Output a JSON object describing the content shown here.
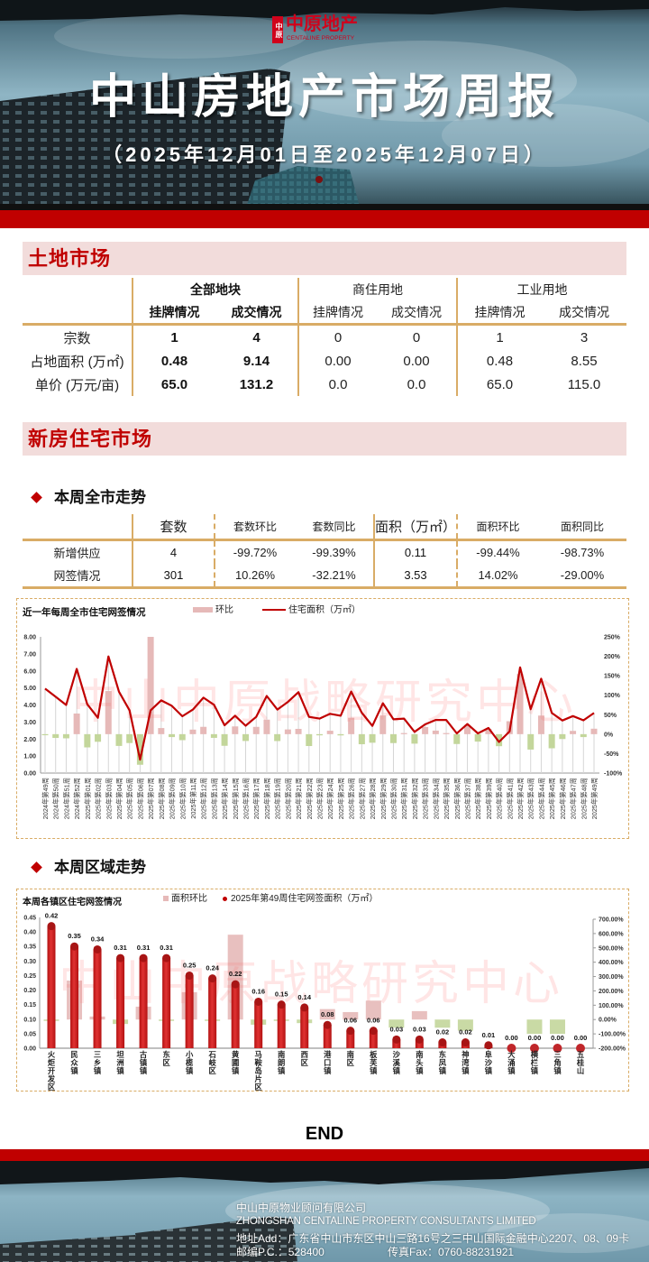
{
  "header": {
    "logo_mark": "中原",
    "logo_cn": "中原地产",
    "logo_en": "CENTALINE PROPERTY",
    "title": "中山房地产市场周报",
    "subtitle": "（2025年12月01日至2025年12月07日）"
  },
  "land": {
    "section_title": "土地市场",
    "groups": [
      "全部地块",
      "商住用地",
      "工业用地"
    ],
    "subheaders": [
      "挂牌情况",
      "成交情况",
      "挂牌情况",
      "成交情况",
      "挂牌情况",
      "成交情况"
    ],
    "rows": [
      {
        "label": "宗数",
        "values": [
          "1",
          "4",
          "0",
          "0",
          "1",
          "3"
        ]
      },
      {
        "label": "占地面积 (万㎡)",
        "values": [
          "0.48",
          "9.14",
          "0.00",
          "0.00",
          "0.48",
          "8.55"
        ]
      },
      {
        "label": "单价 (万元/亩)",
        "values": [
          "65.0",
          "131.2",
          "0.0",
          "0.0",
          "65.0",
          "115.0"
        ]
      }
    ]
  },
  "new_home": {
    "section_title": "新房住宅市场",
    "weekly": {
      "subtitle": "本周全市走势",
      "headers": [
        "套数",
        "套数环比",
        "套数同比",
        "面积（万㎡）",
        "面积环比",
        "面积同比"
      ],
      "rows": [
        {
          "label": "新增供应",
          "values": [
            "4",
            "-99.72%",
            "-99.39%",
            "0.11",
            "-99.44%",
            "-98.73%"
          ]
        },
        {
          "label": "网签情况",
          "values": [
            "301",
            "10.26%",
            "-32.21%",
            "3.53",
            "14.02%",
            "-29.00%"
          ]
        }
      ]
    },
    "regional": {
      "subtitle": "本周区域走势"
    }
  },
  "colors": {
    "brand_red": "#c00000",
    "section_bg": "#f2dcdb",
    "table_rule": "#d9ac66",
    "positive": "#ff2020",
    "negative": "#1fa34a",
    "bar_up": "#e6b9b8",
    "bar_down": "#c3d69b"
  },
  "chart_data": [
    {
      "type": "bar+line",
      "title": "近一年每周全市住宅网签情况",
      "legend": [
        "环比",
        "住宅面积（万㎡）"
      ],
      "legend_position": "top",
      "categories": [
        "2024年第49周",
        "2024年第50周",
        "2024年第51周",
        "2024年第52周",
        "2025年第01周",
        "2025年第02周",
        "2025年第03周",
        "2025年第04周",
        "2025年第05周",
        "2025年第06周",
        "2025年第07周",
        "2025年第08周",
        "2025年第09周",
        "2025年第10周",
        "2025年第11周",
        "2025年第12周",
        "2025年第13周",
        "2025年第14周",
        "2025年第15周",
        "2025年第16周",
        "2025年第17周",
        "2025年第18周",
        "2025年第19周",
        "2025年第20周",
        "2025年第21周",
        "2025年第22周",
        "2025年第23周",
        "2025年第24周",
        "2025年第25周",
        "2025年第26周",
        "2025年第27周",
        "2025年第28周",
        "2025年第29周",
        "2025年第30周",
        "2025年第31周",
        "2025年第32周",
        "2025年第33周",
        "2025年第34周",
        "2025年第35周",
        "2025年第36周",
        "2025年第37周",
        "2025年第38周",
        "2025年第39周",
        "2025年第40周",
        "2025年第41周",
        "2025年第42周",
        "2025年第43周",
        "2025年第44周",
        "2025年第45周",
        "2025年第46周",
        "2025年第47周",
        "2025年第48周",
        "2025年第49周"
      ],
      "series": [
        {
          "name": "住宅面积（万㎡）",
          "type": "line",
          "axis": "left",
          "values": [
            4.96,
            4.48,
            4.0,
            6.12,
            4.04,
            3.25,
            6.85,
            4.78,
            3.69,
            0.79,
            3.69,
            4.27,
            3.95,
            3.34,
            3.73,
            4.43,
            4.01,
            2.81,
            3.37,
            2.78,
            3.3,
            4.53,
            3.73,
            4.18,
            4.75,
            3.3,
            3.2,
            3.48,
            3.37,
            4.79,
            3.55,
            2.77,
            4.1,
            3.16,
            3.2,
            2.42,
            2.86,
            3.12,
            3.12,
            2.33,
            2.88,
            2.33,
            2.65,
            1.83,
            2.44,
            6.21,
            3.75,
            5.54,
            3.53,
            3.09,
            3.35,
            3.1,
            3.53
          ]
        },
        {
          "name": "环比",
          "type": "bar",
          "axis": "right",
          "unit": "%",
          "values": [
            -1.0,
            -9.7,
            -10.7,
            53.0,
            -34.0,
            -19.6,
            110.8,
            -30.2,
            -22.8,
            -78.6,
            367.1,
            15.7,
            -7.5,
            -15.4,
            11.7,
            18.8,
            -9.5,
            -29.9,
            19.9,
            -17.5,
            18.7,
            37.3,
            -17.7,
            12.1,
            13.6,
            -30.5,
            -3.0,
            8.8,
            -3.2,
            42.1,
            -25.9,
            -22.0,
            48.0,
            -22.9,
            1.3,
            -24.4,
            18.2,
            9.1,
            0.0,
            -25.3,
            23.6,
            -19.1,
            13.7,
            -30.9,
            33.3,
            154.5,
            -39.6,
            47.7,
            -36.3,
            -12.5,
            8.4,
            -7.5,
            14.02
          ]
        }
      ],
      "xlabel": "",
      "ylabel": "",
      "y_left": {
        "range": [
          0,
          8
        ],
        "ticks": [
          "0.00",
          "1.00",
          "2.00",
          "3.00",
          "4.00",
          "5.00",
          "6.00",
          "7.00",
          "8.00"
        ]
      },
      "y_right": {
        "range": [
          -100,
          250
        ],
        "ticks": [
          "-100%",
          "-50%",
          "0%",
          "50%",
          "100%",
          "150%",
          "200%",
          "250%"
        ]
      },
      "grid": false,
      "watermark": "中山中原战略研究中心"
    },
    {
      "type": "bar",
      "title": "本周各镇区住宅网签情况",
      "legend": [
        "面积环比",
        "2025年第49周住宅网签面积（万㎡）"
      ],
      "legend_position": "top",
      "categories": [
        "火炬开发区",
        "民众镇",
        "三乡镇",
        "坦洲镇",
        "古镇镇",
        "东区",
        "小榄镇",
        "石岐区",
        "黄圃镇",
        "马鞍岛片区",
        "南朗镇",
        "西区",
        "港口镇",
        "南区",
        "板芙镇",
        "沙溪镇",
        "南头镇",
        "东凤镇",
        "神湾镇",
        "阜沙镇",
        "大涌镇",
        "横栏镇",
        "三角镇",
        "五桂山"
      ],
      "series": [
        {
          "name": "2025年第49周住宅网签面积（万㎡）",
          "type": "bar",
          "axis": "left",
          "values": [
            0.42,
            0.35,
            0.34,
            0.31,
            0.31,
            0.31,
            0.25,
            0.24,
            0.22,
            0.16,
            0.15,
            0.14,
            0.08,
            0.06,
            0.06,
            0.03,
            0.03,
            0.02,
            0.02,
            0.01,
            0.0,
            0.0,
            0.0,
            0.0
          ]
        },
        {
          "name": "面积环比",
          "type": "bar",
          "axis": "right",
          "unit": "%",
          "values": [
            -2,
            272,
            21,
            -31,
            90,
            -2,
            191,
            -2,
            592,
            -36,
            -2,
            -25,
            73,
            52,
            132,
            -57,
            59,
            -57,
            -78,
            null,
            null,
            -100,
            -100,
            null
          ]
        }
      ],
      "xlabel": "",
      "ylabel": "",
      "y_left": {
        "range": [
          0,
          0.45
        ],
        "ticks": [
          "0.00",
          "0.05",
          "0.10",
          "0.15",
          "0.20",
          "0.25",
          "0.30",
          "0.35",
          "0.40",
          "0.45"
        ]
      },
      "y_right": {
        "range": [
          -200,
          700
        ],
        "ticks": [
          "-200.00%",
          "-100.00%",
          "0.00%",
          "100.00%",
          "200.00%",
          "300.00%",
          "400.00%",
          "500.00%",
          "600.00%",
          "700.00%"
        ]
      },
      "grid": false,
      "watermark": "中山中原战略研究中心"
    }
  ],
  "end_label": "END",
  "footer": {
    "company_cn": "中山中原物业顾问有限公司",
    "company_en": "ZHONGSHAN CENTALINE PROPERTY CONSULTANTS LIMITED",
    "address": "地址Add：广东省中山市东区中山三路16号之三中山国际金融中心2207、08、09卡",
    "postcode": "邮编P.C.：528400",
    "fax": "传真Fax：0760-88231921"
  }
}
